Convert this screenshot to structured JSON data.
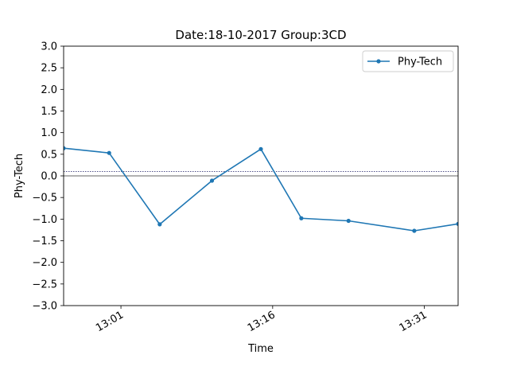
{
  "chart_data": {
    "type": "line",
    "title": "Date:18-10-2017 Group:3CD",
    "xlabel": "Time",
    "ylabel": "Phy-Tech",
    "ylim": [
      -3.0,
      3.0
    ],
    "yticks": [
      "3.0",
      "2.5",
      "2.0",
      "1.5",
      "1.0",
      "0.5",
      "0.0",
      "−0.5",
      "−1.0",
      "−1.5",
      "−2.0",
      "−2.5",
      "−3.0"
    ],
    "xlim": [
      "12:55:20",
      "13:34:20"
    ],
    "xticks": [
      "13:01",
      "13:16",
      "13:31"
    ],
    "legend_position": "top-right",
    "reference_lines": [
      0.0,
      0.1
    ],
    "grid": false,
    "series": [
      {
        "name": "Phy-Tech",
        "color": "#1f77b4",
        "marker": "circle",
        "x": [
          "12:55:20",
          "12:59:50",
          "13:04:50",
          "13:10:00",
          "13:14:50",
          "13:18:50",
          "13:23:30",
          "13:30:00",
          "13:34:20"
        ],
        "y": [
          0.64,
          0.53,
          -1.12,
          -0.11,
          0.62,
          -0.98,
          -1.04,
          -1.27,
          -1.11
        ]
      }
    ]
  }
}
